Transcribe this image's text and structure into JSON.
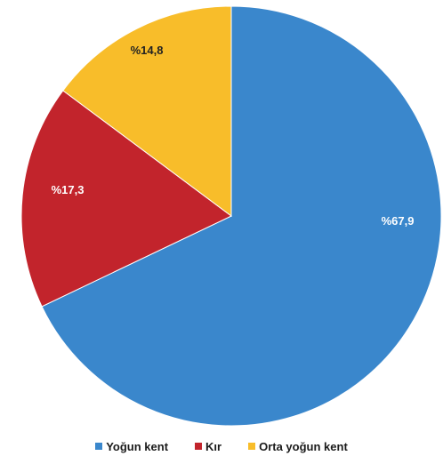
{
  "chart_data": {
    "type": "pie",
    "title": "",
    "start_angle_deg": 0,
    "direction": "clockwise",
    "slices": [
      {
        "name": "Yoğun kent",
        "value": 67.9,
        "label": "%67,9",
        "color": "#3a87cc"
      },
      {
        "name": "Kır",
        "value": 17.3,
        "label": "%17,3",
        "color": "#c2242c"
      },
      {
        "name": "Orta yoğun kent",
        "value": 14.8,
        "label": "%14,8",
        "color": "#f8bd2a"
      }
    ],
    "legend_position": "bottom"
  },
  "legend": {
    "items": [
      {
        "label": "Yoğun kent",
        "color": "#3a87cc"
      },
      {
        "label": "Kır",
        "color": "#c2242c"
      },
      {
        "label": "Orta yoğun kent",
        "color": "#f8bd2a"
      }
    ]
  }
}
